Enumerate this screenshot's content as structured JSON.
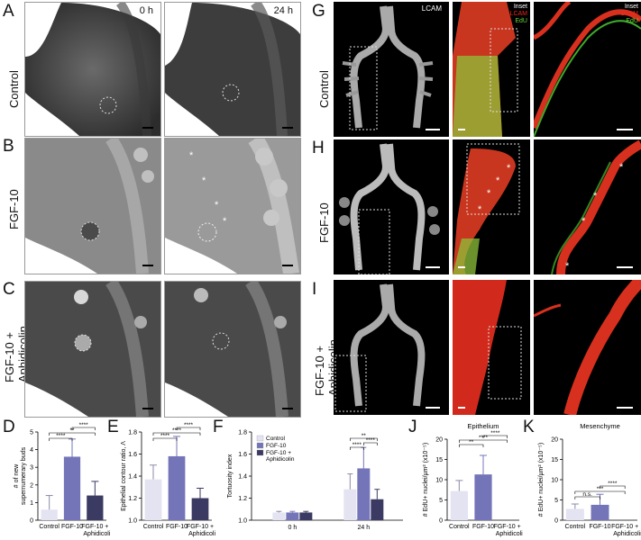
{
  "panel_letters": {
    "A": "A",
    "B": "B",
    "C": "C",
    "D": "D",
    "E": "E",
    "F": "F",
    "G": "G",
    "H": "H",
    "I": "I",
    "J": "J",
    "K": "K"
  },
  "rows_left": {
    "control": "Control",
    "fgf": "FGF-10",
    "fgf_aph_1": "FGF-10 +",
    "fgf_aph_2": "Aphidicolin"
  },
  "rows_right": {
    "control": "Control",
    "fgf": "FGF-10",
    "fgf_aph_1": "FGF-10 +",
    "fgf_aph_2": "Aphidicolin"
  },
  "time_labels": {
    "t0": "0 h",
    "t24": "24 h"
  },
  "fluor_labels": {
    "lcam": "LCAM",
    "inset": "Inset",
    "lcam_red": "LCAM",
    "edu": "EdU"
  },
  "asterisk": "*",
  "colors": {
    "control": "#e3e3f2",
    "fgf": "#7474b8",
    "aph": "#3a3a62",
    "red": "#e8291c",
    "green": "#6bd33a"
  },
  "chart_data": [
    {
      "type": "bar",
      "panel": "D",
      "categories": [
        "Control",
        "FGF-10",
        "FGF-10 +"
      ],
      "category_line2": [
        "",
        "",
        "Aphidicolin"
      ],
      "values": [
        0.6,
        3.6,
        1.4
      ],
      "errors": [
        0.8,
        1.0,
        0.8
      ],
      "ylabel": "# of new supernumerary buds",
      "ylabel_lines": [
        "# of new",
        "supernumerary buds"
      ],
      "yticks": [
        0,
        1,
        2,
        3,
        4,
        5
      ],
      "ylim": [
        0,
        5
      ],
      "significance": [
        {
          "from": 0,
          "to": 1,
          "label": "****"
        },
        {
          "from": 0,
          "to": 2,
          "label": "**"
        },
        {
          "from": 1,
          "to": 2,
          "label": "****"
        }
      ]
    },
    {
      "type": "bar",
      "panel": "E",
      "categories": [
        "Control",
        "FGF-10",
        "FGF-10 +"
      ],
      "category_line2": [
        "",
        "",
        "Aphidicolin"
      ],
      "values": [
        1.37,
        1.58,
        1.2
      ],
      "errors": [
        0.13,
        0.18,
        0.09
      ],
      "ylabel": "Epithelial contour ratio, Λ",
      "yticks": [
        1.0,
        1.2,
        1.4,
        1.6,
        1.8
      ],
      "ylim": [
        1.0,
        1.8
      ],
      "significance": [
        {
          "from": 0,
          "to": 1,
          "label": "****"
        },
        {
          "from": 0,
          "to": 2,
          "label": "****"
        },
        {
          "from": 1,
          "to": 2,
          "label": "****"
        }
      ]
    },
    {
      "type": "bar",
      "panel": "F",
      "groups": [
        "0 h",
        "24 h"
      ],
      "series": [
        {
          "name": "Control",
          "values": [
            1.07,
            1.28
          ],
          "errors": [
            0.01,
            0.14
          ]
        },
        {
          "name": "FGF-10",
          "values": [
            1.07,
            1.47
          ],
          "errors": [
            0.01,
            0.19
          ]
        },
        {
          "name": "FGF-10 + Aphidicolin",
          "values": [
            1.07,
            1.19
          ],
          "errors": [
            0.01,
            0.09
          ]
        }
      ],
      "legend_lines": [
        "Control",
        "FGF-10",
        "FGF-10 +",
        "Aphidicolin"
      ],
      "ylabel": "Tortuosity index",
      "yticks": [
        1.0,
        1.2,
        1.4,
        1.6,
        1.8
      ],
      "ylim": [
        1.0,
        1.8
      ],
      "significance": [
        {
          "group": 1,
          "from": 0,
          "to": 1,
          "label": "****"
        },
        {
          "group": 1,
          "from": 0,
          "to": 2,
          "label": "**"
        },
        {
          "group": 1,
          "from": 1,
          "to": 2,
          "label": "****"
        }
      ]
    },
    {
      "type": "bar",
      "panel": "J",
      "title": "Epithelium",
      "categories": [
        "Control",
        "FGF-10",
        "FGF-10 +"
      ],
      "category_line2": [
        "",
        "",
        "Aphidicolin"
      ],
      "values": [
        7.2,
        11.3,
        0.0
      ],
      "errors": [
        2.6,
        4.7,
        0.0
      ],
      "ylabel": "# EdU+ nuclei/µm² (x10⁻⁵)",
      "yticks": [
        0,
        5,
        10,
        15,
        20
      ],
      "ylim": [
        0,
        20
      ],
      "significance": [
        {
          "from": 0,
          "to": 1,
          "label": "**"
        },
        {
          "from": 0,
          "to": 2,
          "label": "****"
        },
        {
          "from": 1,
          "to": 2,
          "label": "****"
        }
      ]
    },
    {
      "type": "bar",
      "panel": "K",
      "title": "Mesenchyme",
      "categories": [
        "Control",
        "FGF-10",
        "FGF-10 +"
      ],
      "category_line2": [
        "",
        "",
        "Aphidicolin"
      ],
      "values": [
        2.8,
        3.8,
        0.0
      ],
      "errors": [
        1.2,
        2.6,
        0.0
      ],
      "ylabel": "# EdU+ nuclei/µm² (x10⁻⁵)",
      "yticks": [
        0,
        5,
        10,
        15,
        20
      ],
      "ylim": [
        0,
        20
      ],
      "significance": [
        {
          "from": 0,
          "to": 1,
          "label": "n.s."
        },
        {
          "from": 0,
          "to": 2,
          "label": "***"
        },
        {
          "from": 1,
          "to": 2,
          "label": "****"
        }
      ]
    }
  ]
}
